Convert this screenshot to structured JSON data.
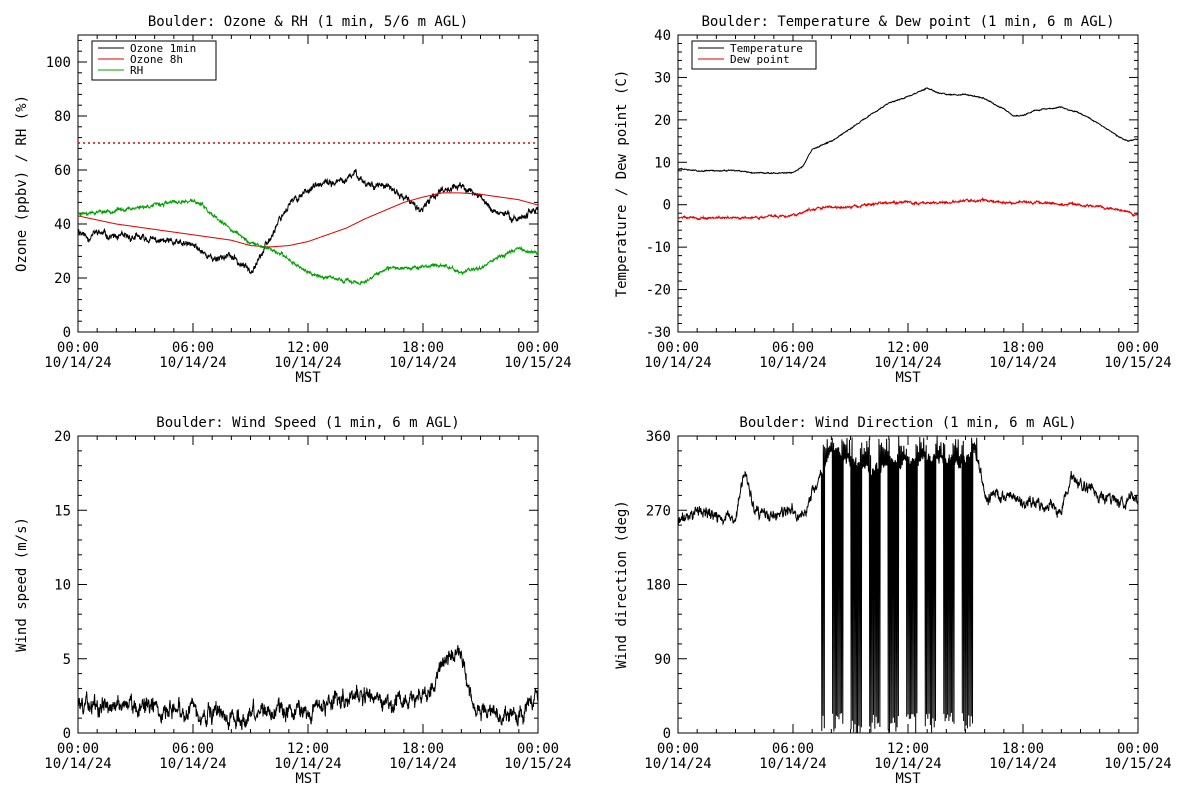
{
  "chart_data": [
    {
      "type": "line",
      "title": "Boulder: Ozone & RH (1 min, 5/6 m AGL)",
      "xlabel": "MST",
      "ylabel": "Ozone (ppbv) / RH (%)",
      "ylim": [
        0,
        110
      ],
      "yticks": [
        0,
        20,
        40,
        60,
        80,
        100
      ],
      "xlim": [
        0,
        24
      ],
      "xticks": [
        0,
        6,
        12,
        18,
        24
      ],
      "xtick_labels": [
        [
          "00:00",
          "10/14/24"
        ],
        [
          "06:00",
          "10/14/24"
        ],
        [
          "12:00",
          "10/14/24"
        ],
        [
          "18:00",
          "10/14/24"
        ],
        [
          "00:00",
          "10/15/24"
        ]
      ],
      "legend_position": "top-left",
      "reference_line": {
        "y": 70,
        "color": "#e00000",
        "style": "dotted"
      },
      "series": [
        {
          "name": "Ozone 1min",
          "color": "#000000",
          "noise": 1.4,
          "seed": 11,
          "x": [
            0,
            0.5,
            1,
            2,
            3,
            4,
            5,
            6,
            6.5,
            7,
            7.5,
            8,
            8.5,
            9,
            9.5,
            10,
            10.5,
            11,
            12,
            13,
            14,
            14.5,
            15,
            16,
            16.5,
            17,
            17.5,
            18,
            18.5,
            19,
            20,
            21,
            21.5,
            22,
            23,
            24
          ],
          "y": [
            38,
            35,
            37,
            35,
            35,
            34,
            33,
            32,
            30,
            27,
            28,
            28,
            25,
            23,
            28,
            34,
            42,
            47,
            53,
            55,
            56,
            59,
            55,
            54,
            52,
            50,
            47,
            45,
            50,
            53,
            54,
            50,
            46,
            44,
            42,
            46
          ]
        },
        {
          "name": "Ozone 8h",
          "color": "#e00000",
          "noise": 0,
          "seed": 0,
          "x": [
            0,
            2,
            4,
            6,
            8,
            9,
            10,
            11,
            12,
            13,
            14,
            15,
            16,
            17,
            18,
            19,
            20,
            21,
            22,
            23,
            24
          ],
          "y": [
            43,
            40,
            38,
            36,
            34,
            32,
            31.5,
            32,
            33.5,
            36,
            38.5,
            42,
            45,
            48,
            50,
            51.5,
            51.5,
            51,
            50,
            49,
            47
          ]
        },
        {
          "name": "RH",
          "color": "#00a000",
          "noise": 0.7,
          "seed": 23,
          "x": [
            0,
            1,
            2,
            3,
            4,
            5,
            6,
            6.5,
            7,
            8,
            9,
            10,
            11,
            12,
            13,
            14,
            15,
            15.5,
            16,
            17,
            18,
            19,
            20,
            21,
            22,
            23,
            24
          ],
          "y": [
            44,
            44.5,
            45,
            46,
            47,
            48,
            48.5,
            47,
            43,
            38,
            33,
            31,
            27,
            22,
            20,
            19,
            18,
            21,
            23,
            24,
            24,
            25,
            22,
            24,
            28,
            31,
            29
          ]
        }
      ]
    },
    {
      "type": "line",
      "title": "Boulder: Temperature & Dew point (1 min, 6 m AGL)",
      "xlabel": "MST",
      "ylabel": "Temperature / Dew point (C)",
      "ylim": [
        -30,
        40
      ],
      "yticks": [
        -30,
        -20,
        -10,
        0,
        10,
        20,
        30,
        40
      ],
      "xlim": [
        0,
        24
      ],
      "xticks": [
        0,
        6,
        12,
        18,
        24
      ],
      "xtick_labels": [
        [
          "00:00",
          "10/14/24"
        ],
        [
          "06:00",
          "10/14/24"
        ],
        [
          "12:00",
          "10/14/24"
        ],
        [
          "18:00",
          "10/14/24"
        ],
        [
          "00:00",
          "10/15/24"
        ]
      ],
      "legend_position": "top-left",
      "series": [
        {
          "name": "Temperature",
          "color": "#000000",
          "noise": 0.15,
          "seed": 31,
          "x": [
            0,
            1,
            2,
            3,
            4,
            5,
            6,
            6.5,
            7,
            8,
            9,
            10,
            11,
            12,
            12.5,
            13,
            13.5,
            14,
            15,
            16,
            17,
            17.5,
            18,
            18.5,
            19,
            20,
            21,
            22,
            23,
            23.5,
            24
          ],
          "y": [
            8.5,
            8,
            8,
            8,
            7.5,
            7.5,
            7.5,
            9,
            13,
            15,
            18,
            21,
            24,
            25.5,
            26.5,
            27.5,
            26.5,
            26,
            26,
            25,
            22.5,
            21,
            21,
            22,
            22.5,
            23,
            21.5,
            19,
            16,
            15,
            15.5
          ]
        },
        {
          "name": "Dew point",
          "color": "#e00000",
          "noise": 0.3,
          "seed": 47,
          "x": [
            0,
            2,
            4,
            6,
            7,
            8,
            9,
            10,
            11,
            12,
            13,
            14,
            15,
            16,
            17,
            18,
            19,
            20,
            21,
            22,
            23,
            24
          ],
          "y": [
            -3,
            -3.2,
            -3,
            -2.5,
            -1,
            -0.5,
            -0.5,
            0,
            0.5,
            0.5,
            0.5,
            0.5,
            1,
            1,
            0.5,
            0.5,
            0.5,
            0,
            0,
            -0.5,
            -1,
            -2.5
          ]
        }
      ]
    },
    {
      "type": "line",
      "title": "Boulder: Wind Speed (1 min, 6 m AGL)",
      "xlabel": "MST",
      "ylabel": "Wind speed (m/s)",
      "ylim": [
        0,
        20
      ],
      "yticks": [
        0,
        5,
        10,
        15,
        20
      ],
      "xlim": [
        0,
        24
      ],
      "xticks": [
        0,
        6,
        12,
        18,
        24
      ],
      "xtick_labels": [
        [
          "00:00",
          "10/14/24"
        ],
        [
          "06:00",
          "10/14/24"
        ],
        [
          "12:00",
          "10/14/24"
        ],
        [
          "18:00",
          "10/14/24"
        ],
        [
          "00:00",
          "10/15/24"
        ]
      ],
      "series": [
        {
          "name": "Wind speed",
          "color": "#000000",
          "noise": 0.7,
          "seed": 59,
          "x": [
            0,
            2,
            4,
            6,
            7,
            8,
            9,
            10,
            11,
            12,
            13,
            14,
            15,
            16,
            17,
            18,
            18.5,
            19,
            19.5,
            20,
            20.5,
            21,
            22,
            23,
            24
          ],
          "y": [
            2,
            2,
            1.8,
            1.5,
            1.2,
            1,
            1.2,
            1.5,
            1.5,
            1.8,
            2,
            2.5,
            2.5,
            2,
            2,
            2.5,
            3,
            4.5,
            5.5,
            5.5,
            2.5,
            1.5,
            1.2,
            1.5,
            2
          ]
        }
      ]
    },
    {
      "type": "line",
      "title": "Boulder: Wind Direction (1 min, 6 m AGL)",
      "xlabel": "MST",
      "ylabel": "Wind direction (deg)",
      "ylim": [
        0,
        360
      ],
      "yticks": [
        0,
        90,
        180,
        270,
        360
      ],
      "xlim": [
        0,
        24
      ],
      "xticks": [
        0,
        6,
        12,
        18,
        24
      ],
      "xtick_labels": [
        [
          "00:00",
          "10/14/24"
        ],
        [
          "06:00",
          "10/14/24"
        ],
        [
          "12:00",
          "10/14/24"
        ],
        [
          "18:00",
          "10/14/24"
        ],
        [
          "00:00",
          "10/15/24"
        ]
      ],
      "series": [
        {
          "name": "Wind direction",
          "color": "#000000",
          "noise": 8,
          "seed": 71,
          "x": [
            0,
            1,
            2,
            3,
            3.5,
            4,
            5,
            6,
            6.5,
            7,
            8,
            9,
            10,
            11,
            12,
            13,
            14,
            15,
            15.5,
            16,
            17,
            18,
            19,
            20,
            20.5,
            21,
            22,
            23,
            24
          ],
          "y": [
            255,
            270,
            262,
            258,
            320,
            265,
            262,
            268,
            262,
            290,
            340,
            330,
            320,
            330,
            330,
            330,
            330,
            330,
            345,
            290,
            285,
            280,
            275,
            270,
            310,
            300,
            290,
            280,
            285
          ],
          "wrap_windows": [
            [
              7.5,
              15.6
            ]
          ],
          "wrap_low": [
            0,
            25
          ],
          "wrap_high": [
            335,
            360
          ]
        }
      ]
    }
  ]
}
